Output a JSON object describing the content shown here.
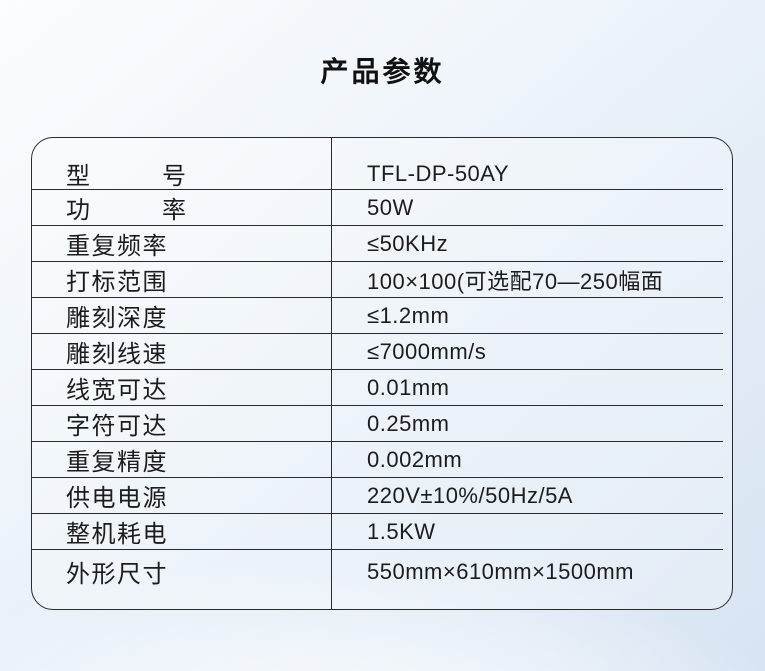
{
  "page": {
    "title": "产品参数"
  },
  "colors": {
    "background_top": "#fbfdff",
    "background_bottom": "#d8e4f3",
    "table_line": "#2b2b2b",
    "text": "#1c1c1c"
  },
  "table": {
    "rows": [
      {
        "label": "型号",
        "justify": true,
        "value": "TFL-DP-50AY"
      },
      {
        "label": "功率",
        "justify": true,
        "value": "50W"
      },
      {
        "label": "重复频率",
        "justify": false,
        "value": "≤50KHz"
      },
      {
        "label": "打标范围",
        "justify": false,
        "value": "100×100(可选配70—250幅面"
      },
      {
        "label": "雕刻深度",
        "justify": false,
        "value": "≤1.2mm"
      },
      {
        "label": "雕刻线速",
        "justify": false,
        "value": "≤7000mm/s"
      },
      {
        "label": "线宽可达",
        "justify": false,
        "value": "0.01mm"
      },
      {
        "label": "字符可达",
        "justify": false,
        "value": "0.25mm"
      },
      {
        "label": "重复精度",
        "justify": false,
        "value": "0.002mm"
      },
      {
        "label": "供电电源",
        "justify": false,
        "value": "220V±10%/50Hz/5A"
      },
      {
        "label": "整机耗电",
        "justify": false,
        "value": "1.5KW"
      },
      {
        "label": "外形尺寸",
        "justify": false,
        "value": "550mm×610mm×1500mm"
      }
    ]
  }
}
